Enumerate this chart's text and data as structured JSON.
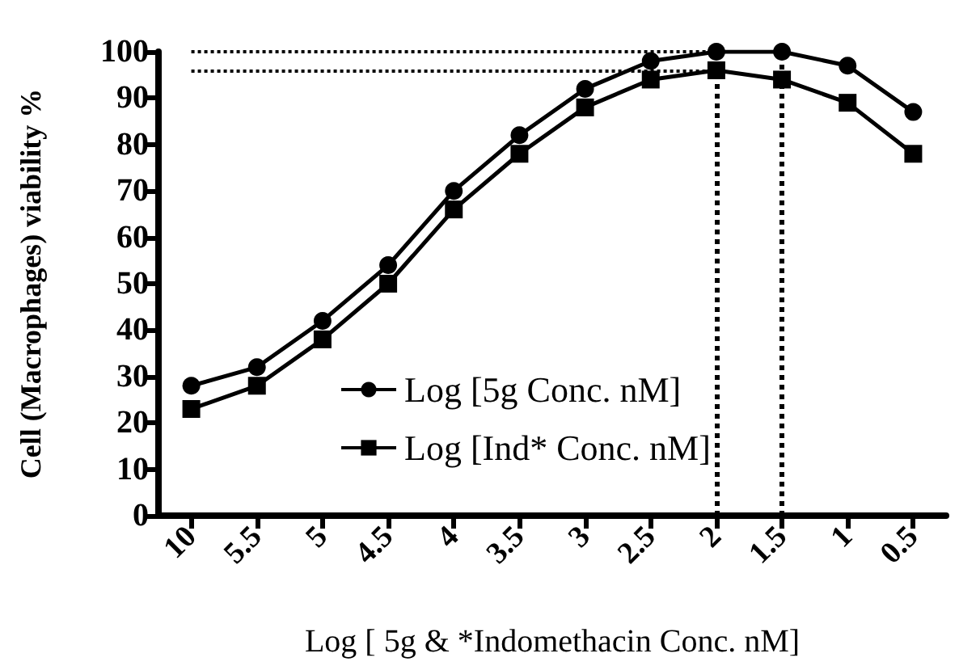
{
  "chart_data": {
    "type": "line",
    "xlabel": "Log [ 5g & *Indomethacin Conc. nM]",
    "ylabel": "Cell (Macrophages) viability %",
    "categories": [
      "10",
      "5.5",
      "5",
      "4.5",
      "4",
      "3.5",
      "3",
      "2.5",
      "2",
      "1.5",
      "1",
      "0.5"
    ],
    "series": [
      {
        "name": "Log [5g Conc. nM]",
        "color": "#000000",
        "marker": "circle",
        "values": [
          28,
          32,
          42,
          54,
          70,
          82,
          92,
          98,
          100,
          100,
          97,
          87
        ]
      },
      {
        "name": "Log [Ind* Conc. nM]",
        "color": "#000000",
        "marker": "square",
        "values": [
          23,
          28,
          38,
          50,
          66,
          78,
          88,
          94,
          96,
          94,
          89,
          78
        ]
      }
    ],
    "ylim": [
      0,
      100
    ],
    "yticks": [
      0,
      10,
      20,
      30,
      40,
      50,
      60,
      70,
      80,
      90,
      100
    ],
    "ref_lines": [
      {
        "axis": "y",
        "value": 100,
        "line_style": "dotted"
      },
      {
        "axis": "y",
        "value": 96,
        "line_style": "dotted"
      },
      {
        "axis": "x",
        "value": "2",
        "line_style": "dotted"
      },
      {
        "axis": "x",
        "value": "1.5",
        "line_style": "dotted"
      }
    ],
    "grid": false,
    "legend": "bottom center",
    "line_style": "solid"
  }
}
